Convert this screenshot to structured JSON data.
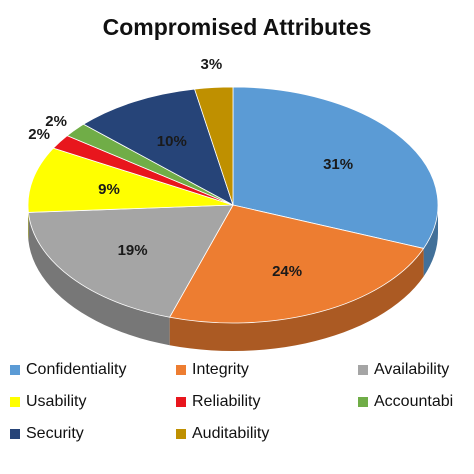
{
  "chart_data": {
    "type": "pie",
    "title": "Compromised Attributes",
    "categories": [
      "Confidentiality",
      "Integrity",
      "Availability",
      "Usability",
      "Reliability",
      "Accountability",
      "Security",
      "Auditability"
    ],
    "values": [
      31,
      24,
      19,
      9,
      2,
      2,
      10,
      3
    ],
    "value_labels": [
      "31%",
      "24%",
      "19%",
      "9%",
      "2%",
      "2%",
      "10%",
      "3%"
    ],
    "colors": [
      "#5B9BD5",
      "#ED7D31",
      "#A5A5A5",
      "#FFFF00",
      "#E8161D",
      "#70AD47",
      "#264478",
      "#BF9000"
    ],
    "style": "3d",
    "legend_position": "bottom",
    "legend_labels": [
      "Confidentiality",
      "Integrity",
      "Availability",
      "Usability",
      "Reliability",
      "Accountabi",
      "Security",
      "Auditability"
    ]
  }
}
